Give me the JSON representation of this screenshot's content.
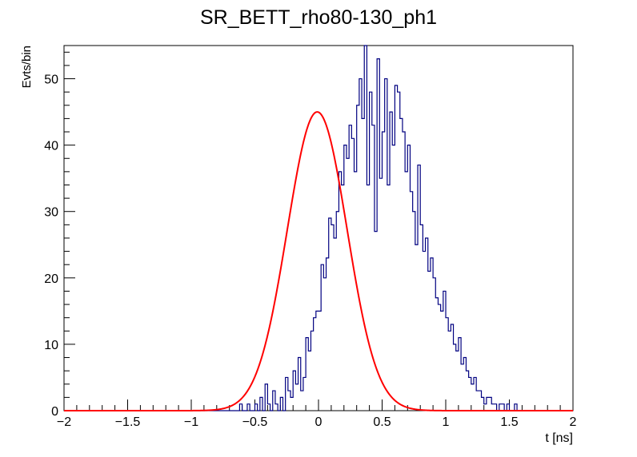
{
  "chart_data": {
    "type": "histogram",
    "title": "SR_BETT_rho80-130_ph1",
    "xlabel": "t [ns]",
    "ylabel": "Evts/bin",
    "xlim": [
      -2,
      2
    ],
    "ylim": [
      0,
      55
    ],
    "x_ticks": [
      -2,
      -1.5,
      -1,
      -0.5,
      0,
      0.5,
      1,
      1.5,
      2
    ],
    "x_tick_labels": [
      "−2",
      "−1.5",
      "−1",
      "−0.5",
      "0",
      "0.5",
      "1",
      "1.5",
      "2"
    ],
    "y_ticks": [
      0,
      10,
      20,
      30,
      40,
      50
    ],
    "y_tick_labels": [
      "0",
      "10",
      "20",
      "30",
      "40",
      "50"
    ],
    "grid": false,
    "histogram": {
      "color": "#000080",
      "bin_width": 0.02,
      "bin_edges_start": -2.0,
      "counts": [
        0,
        0,
        0,
        0,
        0,
        0,
        0,
        0,
        0,
        0,
        0,
        0,
        0,
        0,
        0,
        0,
        0,
        0,
        0,
        0,
        0,
        0,
        0,
        0,
        0,
        0,
        0,
        0,
        0,
        0,
        0,
        0,
        0,
        0,
        0,
        0,
        0,
        0,
        0,
        0,
        0,
        0,
        0,
        0,
        0,
        0,
        0,
        0,
        0,
        0,
        0,
        0,
        0,
        0,
        0,
        0,
        0,
        0,
        0,
        0,
        0,
        0,
        0,
        0,
        0,
        0,
        0,
        0,
        0,
        1,
        0,
        0,
        1,
        0,
        0,
        1,
        0,
        2,
        0,
        4,
        1,
        0,
        3,
        1,
        0,
        2,
        0,
        5,
        3,
        2,
        6,
        4,
        8,
        3,
        5,
        11,
        9,
        12,
        14,
        15,
        15,
        22,
        20,
        23,
        29,
        28,
        26,
        30,
        36,
        34,
        40,
        38,
        43,
        41,
        36,
        46,
        50,
        44,
        55,
        34,
        48,
        43,
        27,
        53,
        35,
        42,
        50,
        34,
        45,
        40,
        49,
        48,
        44,
        42,
        36,
        40,
        33,
        30,
        25,
        37,
        28,
        24,
        26,
        21,
        23,
        20,
        17,
        16,
        15,
        18,
        14,
        12,
        13,
        10,
        9,
        11,
        7,
        8,
        6,
        5,
        4,
        5,
        3,
        3,
        2,
        1,
        2,
        2,
        1,
        1,
        0,
        1,
        1,
        0,
        1,
        0,
        0,
        1,
        0,
        0,
        0,
        0,
        0,
        0,
        0,
        0,
        0,
        0,
        0,
        0,
        0,
        0,
        0,
        0,
        0,
        0,
        0,
        0,
        0,
        0
      ]
    },
    "fit": {
      "type": "gaussian",
      "color": "#ff0000",
      "amplitude": 45,
      "mean": -0.01,
      "sigma": 0.235
    }
  }
}
